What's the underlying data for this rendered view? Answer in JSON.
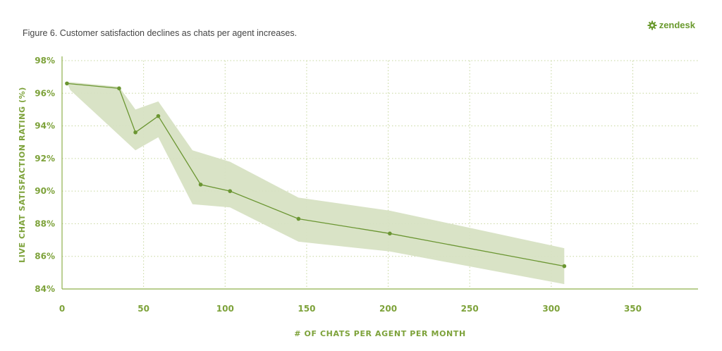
{
  "caption": "Figure 6. Customer satisfaction declines as chats per agent increases.",
  "brand": {
    "name": "zendesk",
    "icon": "zendesk-gear-icon",
    "color": "#6a9a2e"
  },
  "colors": {
    "line": "#6b9632",
    "band": "#d7e2c3",
    "grid": "#c5d69c",
    "axis": "#8fb04c",
    "text": "#7da23a"
  },
  "chart_data": {
    "type": "line",
    "title": "",
    "xlabel": "# OF CHATS PER AGENT PER MONTH",
    "ylabel": "LIVE CHAT SATISFACTION RATING (%)",
    "xlim": [
      0,
      390
    ],
    "ylim": [
      84,
      98
    ],
    "x_ticks": [
      0,
      50,
      100,
      150,
      200,
      250,
      300,
      350
    ],
    "x_tick_labels": [
      "0",
      "50",
      "100",
      "150",
      "200",
      "250",
      "300",
      "350"
    ],
    "y_ticks": [
      84,
      86,
      88,
      90,
      92,
      94,
      96,
      98
    ],
    "y_tick_labels": [
      "84%",
      "86%",
      "88%",
      "90%",
      "92%",
      "94%",
      "96%",
      "98%"
    ],
    "grid": "dotted",
    "series": [
      {
        "x": [
          3,
          35,
          45,
          59,
          85,
          103,
          145,
          201,
          308
        ],
        "y": [
          96.6,
          96.3,
          93.6,
          94.6,
          90.4,
          90.0,
          88.3,
          87.4,
          85.4
        ]
      }
    ],
    "confidence_band": {
      "upper": [
        {
          "x": 3,
          "y": 96.7
        },
        {
          "x": 35,
          "y": 96.4
        },
        {
          "x": 45,
          "y": 95.0
        },
        {
          "x": 59,
          "y": 95.5
        },
        {
          "x": 80,
          "y": 92.5
        },
        {
          "x": 103,
          "y": 91.8
        },
        {
          "x": 145,
          "y": 89.6
        },
        {
          "x": 201,
          "y": 88.8
        },
        {
          "x": 308,
          "y": 86.5
        }
      ],
      "lower": [
        {
          "x": 308,
          "y": 84.3
        },
        {
          "x": 201,
          "y": 86.3
        },
        {
          "x": 145,
          "y": 86.9
        },
        {
          "x": 103,
          "y": 89.0
        },
        {
          "x": 80,
          "y": 89.2
        },
        {
          "x": 59,
          "y": 93.3
        },
        {
          "x": 45,
          "y": 92.5
        },
        {
          "x": 5,
          "y": 96.2
        }
      ]
    }
  }
}
